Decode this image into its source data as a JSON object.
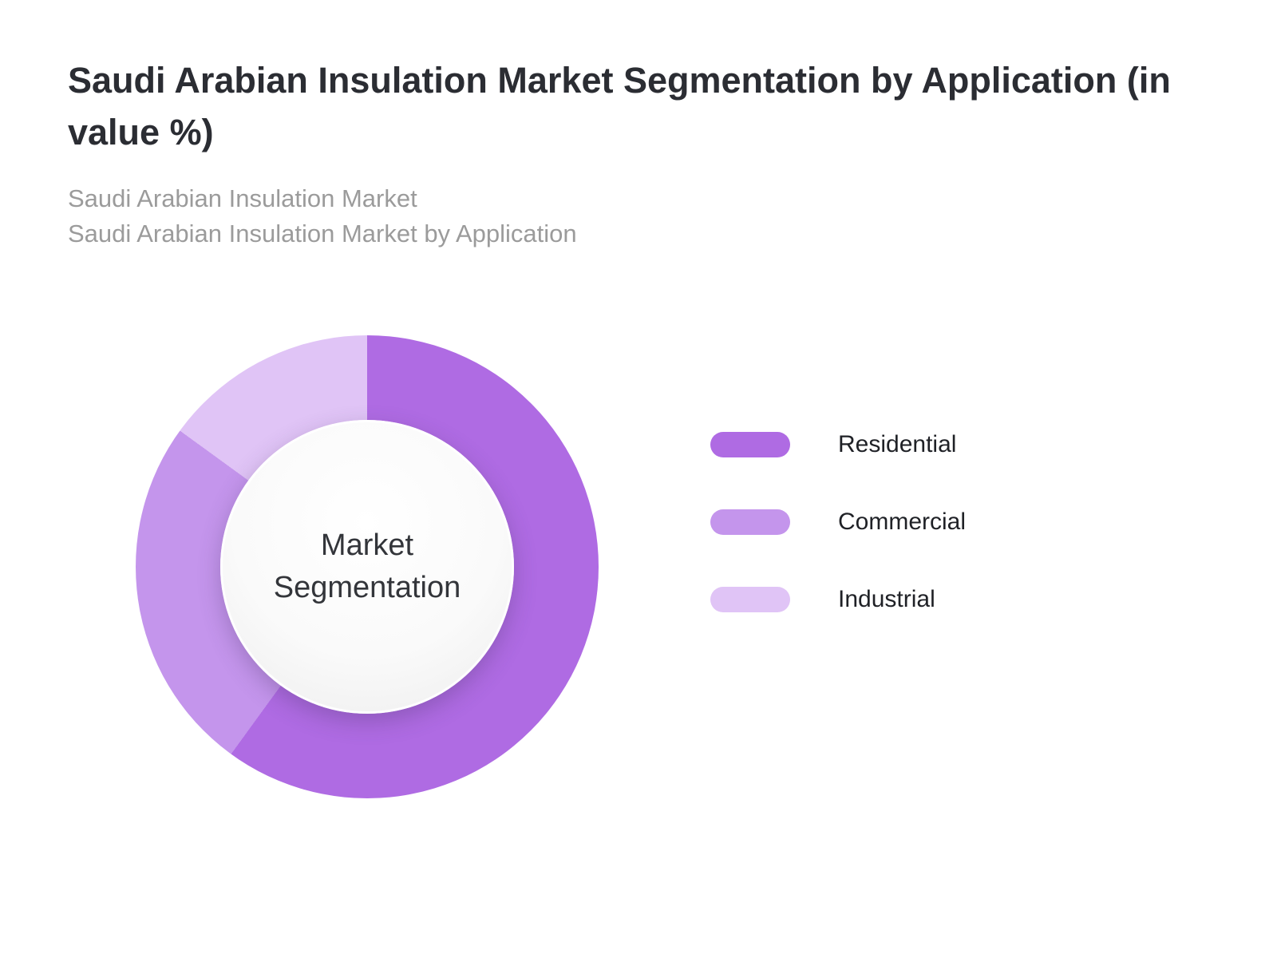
{
  "page": {
    "title": "Saudi Arabian Insulation Market Segmentation by Application (in value %)",
    "subtitle_line1": "Saudi Arabian Insulation Market",
    "subtitle_line2": "Saudi Arabian Insulation Market by Application"
  },
  "chart_data": {
    "type": "pie",
    "variant": "donut",
    "title": "Saudi Arabian Insulation Market Segmentation by Application (in value %)",
    "center_label": "Market Segmentation",
    "units": "value %",
    "start_angle_deg": 0,
    "direction": "clockwise",
    "legend_position": "right",
    "segments": [
      {
        "label": "Residential",
        "value": 60,
        "color": "#af6be3"
      },
      {
        "label": "Commercial",
        "value": 25,
        "color": "#c495ec"
      },
      {
        "label": "Industrial",
        "value": 15,
        "color": "#e0c4f6"
      }
    ]
  }
}
